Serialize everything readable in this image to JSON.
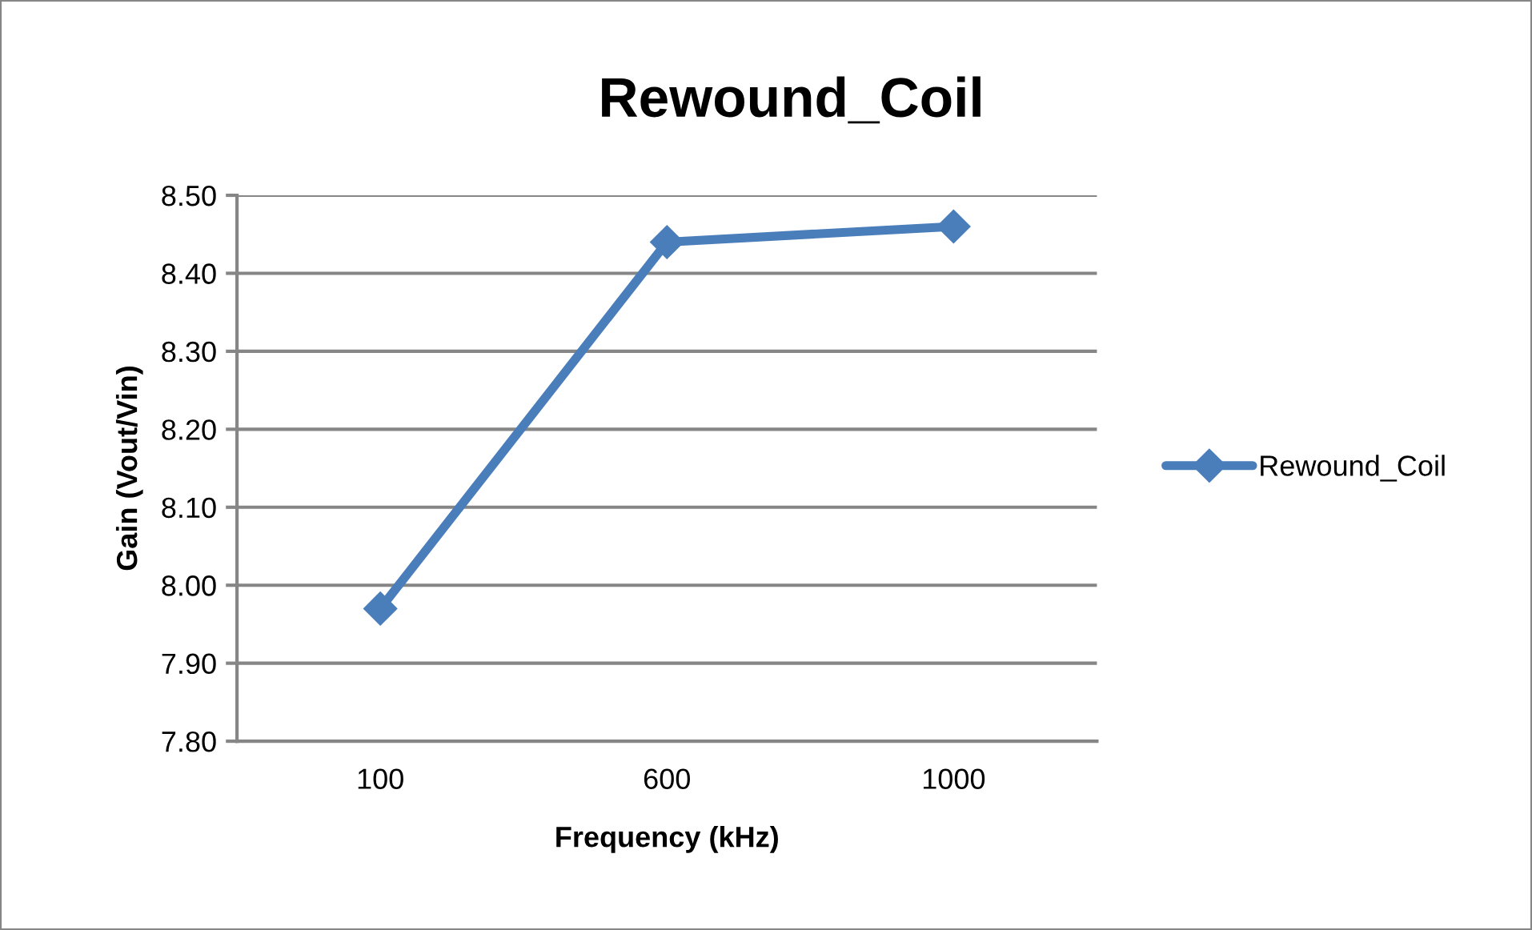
{
  "chart_data": {
    "type": "line",
    "title": "Rewound_Coil",
    "xlabel": "Frequency (kHz)",
    "ylabel": "Gain (Vout/Vin)",
    "categories": [
      "100",
      "600",
      "1000"
    ],
    "series": [
      {
        "name": "Rewound_Coil",
        "color": "#4a7ebb",
        "values": [
          7.97,
          8.44,
          8.46
        ]
      }
    ],
    "ylim": [
      7.8,
      8.5
    ],
    "yticks": [
      {
        "value": 7.8,
        "label": "7.80"
      },
      {
        "value": 7.9,
        "label": "7.90"
      },
      {
        "value": 8.0,
        "label": "8.00"
      },
      {
        "value": 8.1,
        "label": "8.10"
      },
      {
        "value": 8.2,
        "label": "8.20"
      },
      {
        "value": 8.3,
        "label": "8.30"
      },
      {
        "value": 8.4,
        "label": "8.40"
      },
      {
        "value": 8.5,
        "label": "8.50"
      }
    ],
    "grid": "y",
    "legend": "right",
    "marker": "diamond",
    "line_style": "solid"
  }
}
